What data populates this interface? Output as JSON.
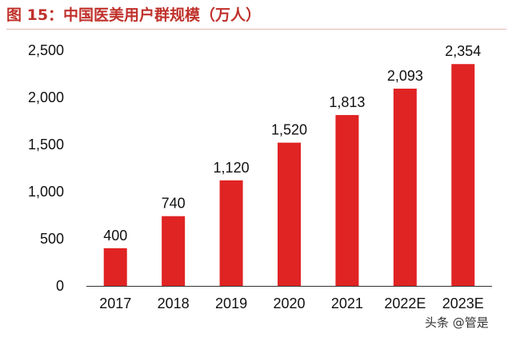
{
  "header": {
    "title": "图 15：中国医美用户群规模（万人）"
  },
  "watermark": "头条 @管是",
  "chart_data": {
    "type": "bar",
    "title": "图 15：中国医美用户群规模（万人）",
    "xlabel": "",
    "ylabel": "",
    "categories": [
      "2017",
      "2018",
      "2019",
      "2020",
      "2021",
      "2022E",
      "2023E"
    ],
    "values": [
      400,
      740,
      1120,
      1520,
      1813,
      2093,
      2354
    ],
    "value_labels": [
      "400",
      "740",
      "1,120",
      "1,520",
      "1,813",
      "2,093",
      "2,354"
    ],
    "ylim": [
      0,
      2500
    ],
    "yticks": [
      0,
      500,
      1000,
      1500,
      2000,
      2500
    ],
    "ytick_labels": [
      "0",
      "500",
      "1,000",
      "1,500",
      "2,000",
      "2,500"
    ],
    "grid": false,
    "legend": "none",
    "colors": {
      "bar": "#e02323",
      "title": "#c0312b",
      "axis": "#333333"
    }
  }
}
